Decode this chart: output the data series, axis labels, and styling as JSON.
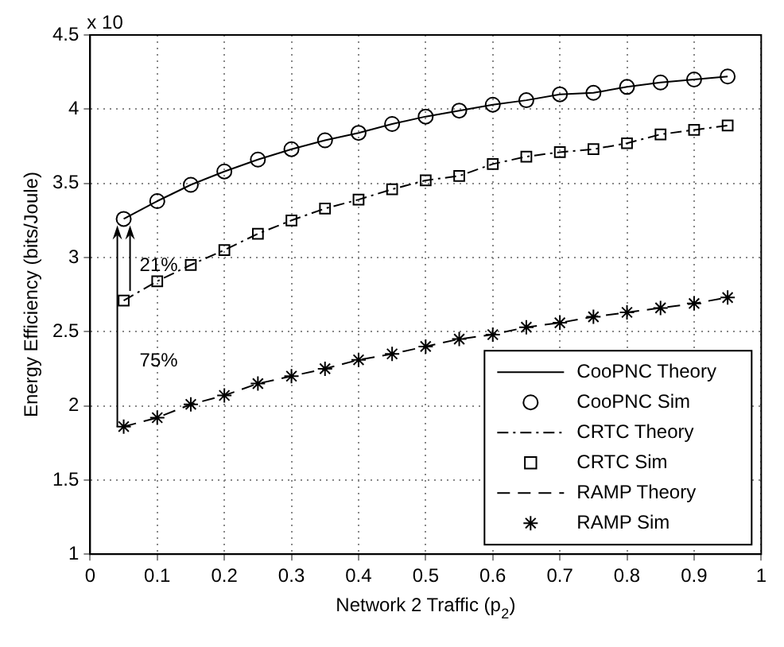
{
  "chart_data": {
    "type": "line",
    "xlabel": "Network 2 Traffic (p$_{2}$)",
    "ylabel": "Energy Efficiency (bits/Joule)",
    "x": [
      0.05,
      0.1,
      0.15,
      0.2,
      0.25,
      0.3,
      0.35,
      0.4,
      0.45,
      0.5,
      0.55,
      0.6,
      0.65,
      0.7,
      0.75,
      0.8,
      0.85,
      0.9,
      0.95
    ],
    "series": [
      {
        "name": "CooPNC Theory",
        "color": "#000000",
        "marker": "none",
        "line_style": "solid",
        "values": [
          3.26,
          3.38,
          3.49,
          3.58,
          3.66,
          3.73,
          3.79,
          3.84,
          3.9,
          3.95,
          3.99,
          4.03,
          4.06,
          4.1,
          4.11,
          4.15,
          4.18,
          4.2,
          4.22
        ]
      },
      {
        "name": "CooPNC Sim",
        "type": "scatter",
        "color": "#000000",
        "marker": "circle",
        "values": [
          3.26,
          3.38,
          3.49,
          3.58,
          3.66,
          3.73,
          3.79,
          3.84,
          3.9,
          3.95,
          3.99,
          4.03,
          4.06,
          4.1,
          4.11,
          4.15,
          4.18,
          4.2,
          4.22
        ]
      },
      {
        "name": "CRTC Theory",
        "color": "#000000",
        "marker": "none",
        "line_style": "dotted",
        "values": [
          2.71,
          2.84,
          2.95,
          3.05,
          3.16,
          3.25,
          3.33,
          3.39,
          3.46,
          3.52,
          3.55,
          3.63,
          3.68,
          3.71,
          3.73,
          3.77,
          3.83,
          3.86,
          3.89
        ]
      },
      {
        "name": "CRTC Sim",
        "type": "scatter",
        "color": "#000000",
        "marker": "square",
        "values": [
          2.71,
          2.84,
          2.95,
          3.05,
          3.16,
          3.25,
          3.33,
          3.39,
          3.46,
          3.52,
          3.55,
          3.63,
          3.68,
          3.71,
          3.73,
          3.77,
          3.83,
          3.86,
          3.89
        ]
      },
      {
        "name": "RAMP Theory",
        "color": "#000000",
        "marker": "none",
        "line_style": "dashed",
        "values": [
          1.86,
          1.92,
          2.01,
          2.07,
          2.15,
          2.2,
          2.25,
          2.31,
          2.35,
          2.4,
          2.45,
          2.48,
          2.53,
          2.56,
          2.6,
          2.63,
          2.66,
          2.69,
          2.73
        ]
      },
      {
        "name": "RAMP Sim",
        "type": "scatter",
        "color": "#000000",
        "marker": "cross",
        "values": [
          1.86,
          1.92,
          2.01,
          2.07,
          2.15,
          2.2,
          2.25,
          2.31,
          2.35,
          2.4,
          2.45,
          2.48,
          2.53,
          2.56,
          2.6,
          2.63,
          2.66,
          2.69,
          2.73
        ]
      }
    ],
    "xlim": [
      0,
      1
    ],
    "xticks": [
      0,
      0.1,
      0.2,
      0.3,
      0.4,
      0.5,
      0.6,
      0.7,
      0.8,
      0.9,
      1
    ],
    "ylim": [
      1,
      4.5
    ],
    "yticks": [
      1,
      1.5,
      2,
      2.5,
      3,
      3.5,
      4,
      4.5
    ],
    "grid": true,
    "legend": "bottom right",
    "annotations": [
      "x 10",
      {
        "text": "21%",
        "x": 0.05,
        "y": 3.26
      },
      "75%"
    ]
  }
}
